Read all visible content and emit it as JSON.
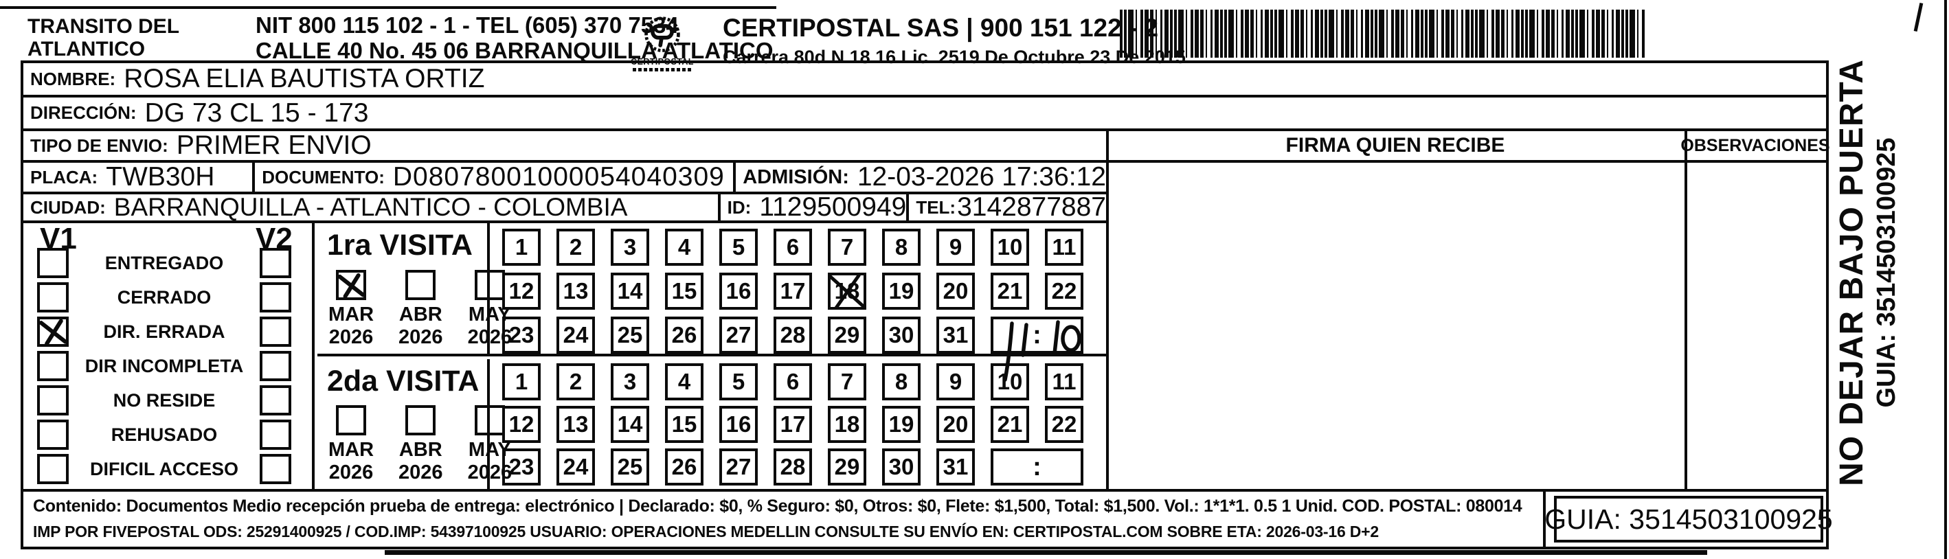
{
  "header": {
    "company": [
      "TRANSITO DEL",
      "ATLANTICO"
    ],
    "nit_line": "NIT 800 115 102 - 1 - TEL (605) 370 7534",
    "address_line": "CALLE 40 No. 45 06 BARRANQUILLA ATLATICO",
    "logo_caption": "CERTIPOSTAL",
    "provider_line": "CERTIPOSTAL SAS | 900 151 122 - 2",
    "license_line": "Carrera 80d N 18 16  Lic. 2519 De Octubre 23 De 2015"
  },
  "fields": {
    "nombre_label": "NOMBRE:",
    "nombre": "ROSA ELIA BAUTISTA ORTIZ",
    "direccion_label": "DIRECCIÓN:",
    "direccion": "DG 73 CL 15 - 173",
    "tipo_envio_label": "TIPO DE ENVIO:",
    "tipo_envio": "PRIMER ENVIO",
    "placa_label": "PLACA:",
    "placa": "TWB30H",
    "documento_label": "DOCUMENTO:",
    "documento": "D08078001000054040309",
    "admision_label": "ADMISIÓN:",
    "admision": "12-03-2026 17:36:12",
    "ciudad_label": "CIUDAD:",
    "ciudad": "BARRANQUILLA - ATLANTICO - COLOMBIA",
    "id_label": "ID:",
    "id_value": "1129500949",
    "tel_label": "TEL:",
    "tel_value": "3142877887"
  },
  "columns": {
    "firma": "FIRMA QUIEN RECIBE",
    "observaciones": "OBSERVACIONES"
  },
  "status_panel": {
    "col1": "V1",
    "col2": "V2",
    "items": [
      {
        "label": "ENTREGADO",
        "v1_checked": false,
        "v2_checked": false
      },
      {
        "label": "CERRADO",
        "v1_checked": false,
        "v2_checked": false
      },
      {
        "label": "DIR. ERRADA",
        "v1_checked": true,
        "v2_checked": false
      },
      {
        "label": "DIR INCOMPLETA",
        "v1_checked": false,
        "v2_checked": false
      },
      {
        "label": "NO RESIDE",
        "v1_checked": false,
        "v2_checked": false
      },
      {
        "label": "REHUSADO",
        "v1_checked": false,
        "v2_checked": false
      },
      {
        "label": "DIFICIL ACCESO",
        "v1_checked": false,
        "v2_checked": false
      }
    ]
  },
  "visits": [
    {
      "title": "1ra VISITA",
      "months": [
        {
          "label": "MAR",
          "year": "2026",
          "checked": true
        },
        {
          "label": "ABR",
          "year": "2026",
          "checked": false
        },
        {
          "label": "MAY",
          "year": "2026",
          "checked": false
        }
      ],
      "days": [
        1,
        2,
        3,
        4,
        5,
        6,
        7,
        8,
        9,
        10,
        11,
        12,
        13,
        14,
        15,
        16,
        17,
        18,
        19,
        20,
        21,
        22,
        23,
        24,
        25,
        26,
        27,
        28,
        29,
        30,
        31
      ],
      "crossed_day": 18,
      "time_separator": ":",
      "time_handwritten": "11:10"
    },
    {
      "title": "2da VISITA",
      "months": [
        {
          "label": "MAR",
          "year": "2026",
          "checked": false
        },
        {
          "label": "ABR",
          "year": "2026",
          "checked": false
        },
        {
          "label": "MAY",
          "year": "2026",
          "checked": false
        }
      ],
      "days": [
        1,
        2,
        3,
        4,
        5,
        6,
        7,
        8,
        9,
        10,
        11,
        12,
        13,
        14,
        15,
        16,
        17,
        18,
        19,
        20,
        21,
        22,
        23,
        24,
        25,
        26,
        27,
        28,
        29,
        30,
        31
      ],
      "crossed_day": null,
      "time_separator": ":",
      "time_handwritten": ""
    }
  ],
  "side_note": {
    "line1": "NO DEJAR BAJO PUERTA",
    "line2": "GUIA: 3514503100925"
  },
  "footer": {
    "line1": "Contenido: Documentos Medio recepción prueba de entrega: electrónico | Declarado: $0, % Seguro: $0, Otros: $0, Flete: $1,500, Total: $1,500. Vol.: 1*1*1. 0.5  1 Unid. COD. POSTAL: 080014",
    "line2": "IMP POR FIVEPOSTAL ODS: 25291400925 / COD.IMP: 54397100925 USUARIO: OPERACIONES MEDELLIN CONSULTE SU ENVÍO EN: CERTIPOSTAL.COM SOBRE ETA: 2026-03-16 D+2",
    "guia": "GUIA: 3514503100925"
  },
  "colors": {
    "ink": "#0b0b0b",
    "paper": "#ffffff"
  }
}
